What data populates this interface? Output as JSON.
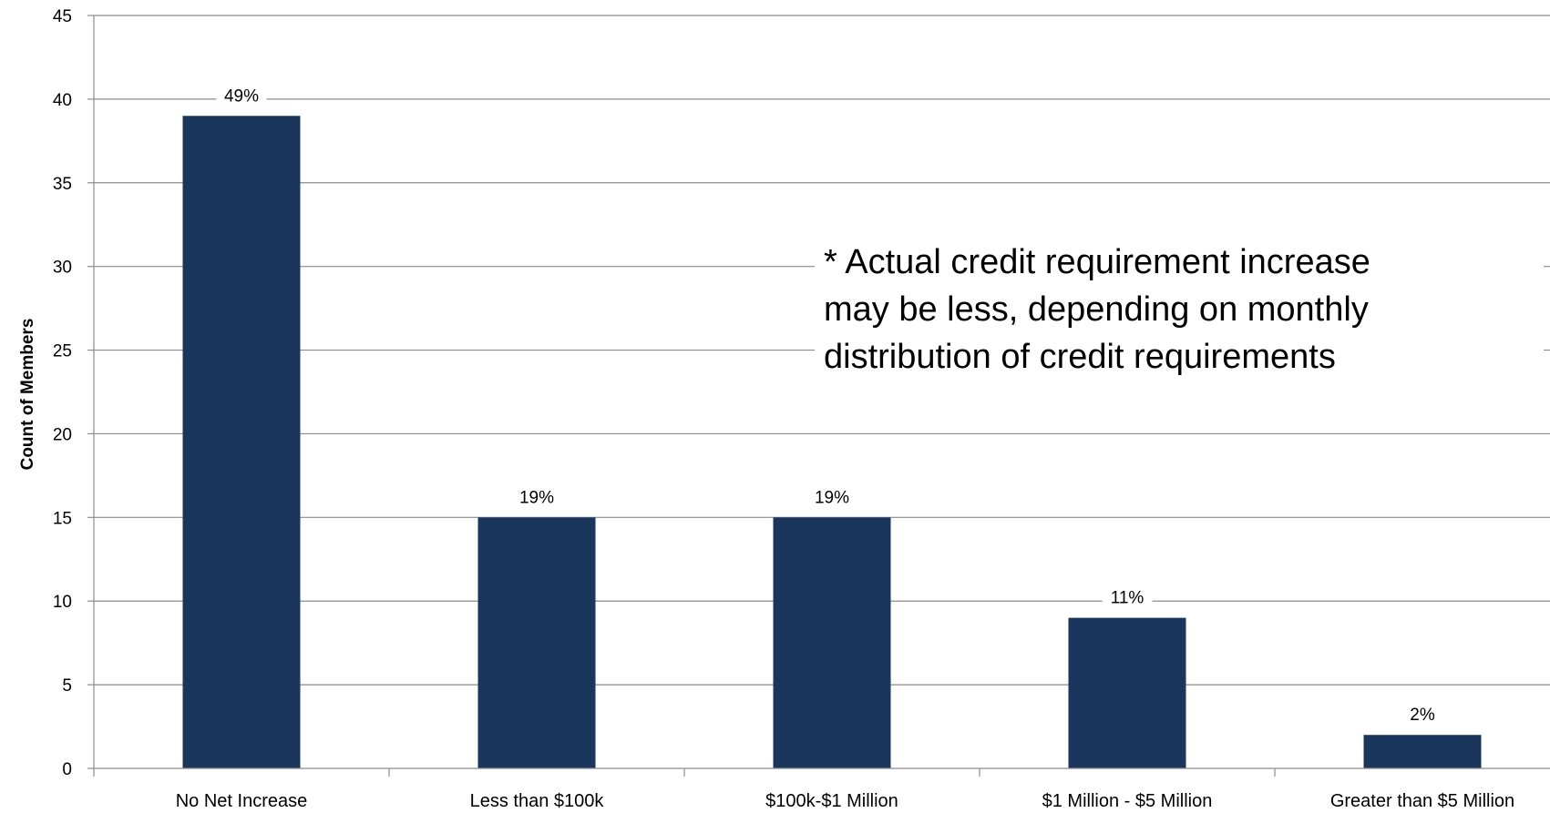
{
  "chart_data": {
    "type": "bar",
    "title": "",
    "xlabel": "",
    "ylabel": "Count of Members",
    "ylim": [
      0,
      45
    ],
    "y_ticks": [
      0,
      5,
      10,
      15,
      20,
      25,
      30,
      35,
      40,
      45
    ],
    "categories": [
      "No Net Increase",
      "Less than $100k",
      "$100k-$1 Million",
      "$1 Million - $5 Million",
      "Greater than $5 Million"
    ],
    "values": [
      39,
      15,
      15,
      9,
      2
    ],
    "data_labels": [
      "49%",
      "19%",
      "19%",
      "11%",
      "2%"
    ],
    "grid": true,
    "legend": "none",
    "bar_color": "#1b365d"
  },
  "annotation": {
    "text": "* Actual credit requirement increase\nmay be less, depending on monthly\ndistribution of credit requirements"
  }
}
